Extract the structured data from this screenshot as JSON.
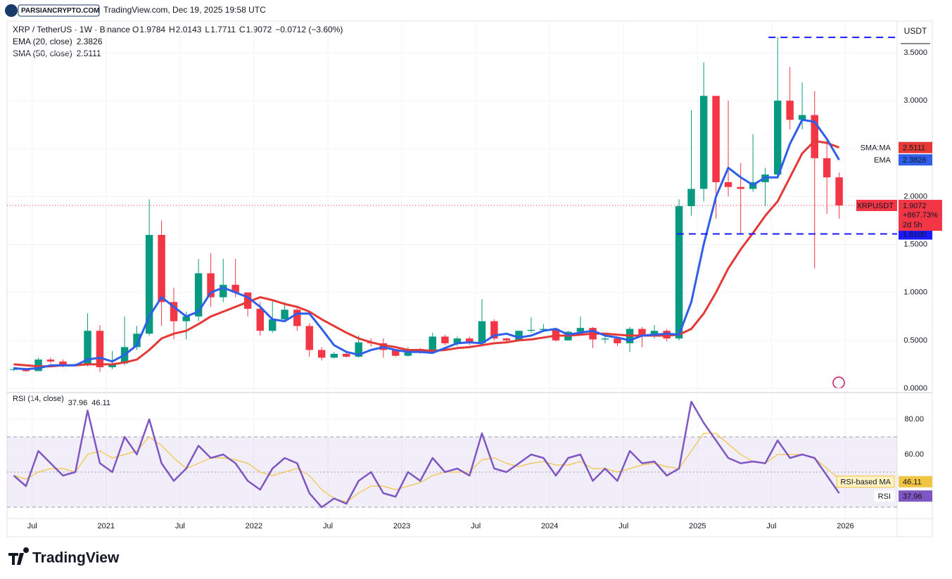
{
  "header": {
    "watermark": "PARSIANCRYPTO.COM",
    "stamp": "TradingView.com, Dec 19, 2025 19:58 UTC",
    "logo": "TradingView"
  },
  "chart_data": {
    "type": "candlestick",
    "title": "XRP / TetherUS · 1W · Binance",
    "ohlc": [
      {
        "key": "O",
        "value": 1.9784
      },
      {
        "key": "H",
        "value": 2.0143
      },
      {
        "key": "L",
        "value": 1.7711
      },
      {
        "key": "C",
        "value": 1.9072
      }
    ],
    "change": {
      "value": -0.0712,
      "label": "−0.0712 (−3.60%)"
    },
    "up_color": "#089981",
    "down_color": "#f23645",
    "x": [
      2020.375,
      2020.458,
      2020.542,
      2020.625,
      2020.708,
      2020.792,
      2020.875,
      2020.958,
      2021.042,
      2021.125,
      2021.208,
      2021.292,
      2021.375,
      2021.458,
      2021.542,
      2021.625,
      2021.708,
      2021.792,
      2021.875,
      2021.958,
      2022.042,
      2022.125,
      2022.208,
      2022.292,
      2022.375,
      2022.458,
      2022.542,
      2022.625,
      2022.708,
      2022.792,
      2022.875,
      2022.958,
      2023.042,
      2023.125,
      2023.208,
      2023.292,
      2023.375,
      2023.458,
      2023.542,
      2023.625,
      2023.708,
      2023.792,
      2023.875,
      2023.958,
      2024.042,
      2024.125,
      2024.208,
      2024.292,
      2024.375,
      2024.458,
      2024.542,
      2024.625,
      2024.708,
      2024.792,
      2024.875,
      2024.958,
      2025.042,
      2025.125,
      2025.208,
      2025.292,
      2025.375,
      2025.458,
      2025.542,
      2025.625,
      2025.708,
      2025.792,
      2025.875,
      2025.958
    ],
    "open": [
      0.2,
      0.2,
      0.18,
      0.3,
      0.28,
      0.24,
      0.25,
      0.6,
      0.22,
      0.26,
      0.43,
      0.57,
      1.6,
      0.9,
      0.7,
      0.75,
      1.2,
      0.95,
      1.08,
      1.0,
      0.83,
      0.6,
      0.72,
      0.82,
      0.65,
      0.4,
      0.32,
      0.36,
      0.33,
      0.48,
      0.47,
      0.4,
      0.34,
      0.41,
      0.38,
      0.54,
      0.47,
      0.52,
      0.47,
      0.7,
      0.52,
      0.5,
      0.6,
      0.61,
      0.62,
      0.5,
      0.59,
      0.63,
      0.51,
      0.52,
      0.47,
      0.62,
      0.56,
      0.6,
      0.52,
      1.9,
      2.08,
      3.05,
      2.15,
      2.1,
      2.08,
      2.15,
      2.23,
      3.0,
      2.8,
      2.85,
      2.4,
      2.2
    ],
    "high": [
      0.22,
      0.21,
      0.32,
      0.32,
      0.3,
      0.26,
      0.78,
      0.66,
      0.39,
      0.75,
      0.65,
      1.97,
      1.75,
      1.05,
      0.8,
      1.35,
      1.41,
      1.35,
      1.35,
      1.0,
      0.9,
      0.92,
      0.9,
      0.85,
      0.68,
      0.43,
      0.38,
      0.38,
      0.55,
      0.52,
      0.52,
      0.41,
      0.43,
      0.42,
      0.58,
      0.56,
      0.54,
      0.54,
      0.93,
      0.72,
      0.53,
      0.6,
      0.74,
      0.67,
      0.63,
      0.6,
      0.75,
      0.64,
      0.55,
      0.53,
      0.64,
      0.64,
      0.66,
      0.62,
      1.97,
      2.9,
      3.4,
      3.05,
      3.0,
      2.35,
      2.65,
      2.3,
      3.66,
      3.35,
      3.19,
      3.1,
      2.6,
      2.25
    ],
    "low": [
      0.18,
      0.17,
      0.18,
      0.26,
      0.22,
      0.23,
      0.23,
      0.17,
      0.2,
      0.24,
      0.4,
      0.55,
      0.65,
      0.51,
      0.51,
      0.7,
      0.85,
      0.9,
      0.95,
      0.75,
      0.55,
      0.58,
      0.7,
      0.6,
      0.33,
      0.29,
      0.31,
      0.32,
      0.32,
      0.44,
      0.32,
      0.33,
      0.33,
      0.36,
      0.36,
      0.45,
      0.44,
      0.45,
      0.47,
      0.5,
      0.48,
      0.49,
      0.58,
      0.59,
      0.49,
      0.5,
      0.55,
      0.42,
      0.47,
      0.44,
      0.38,
      0.43,
      0.52,
      0.49,
      0.5,
      1.8,
      1.95,
      1.77,
      2.0,
      1.61,
      2.05,
      1.9,
      2.2,
      2.7,
      2.7,
      1.25,
      1.82,
      1.77
    ],
    "close": [
      0.2,
      0.18,
      0.3,
      0.28,
      0.24,
      0.25,
      0.6,
      0.22,
      0.26,
      0.43,
      0.57,
      1.6,
      0.9,
      0.7,
      0.75,
      1.2,
      0.95,
      1.08,
      1.0,
      0.83,
      0.6,
      0.72,
      0.82,
      0.65,
      0.4,
      0.32,
      0.36,
      0.33,
      0.48,
      0.47,
      0.4,
      0.34,
      0.41,
      0.38,
      0.54,
      0.47,
      0.52,
      0.47,
      0.7,
      0.52,
      0.5,
      0.6,
      0.61,
      0.62,
      0.5,
      0.59,
      0.63,
      0.51,
      0.52,
      0.47,
      0.62,
      0.56,
      0.6,
      0.52,
      1.9,
      2.08,
      3.05,
      2.15,
      2.1,
      2.08,
      2.15,
      2.23,
      3.0,
      2.8,
      2.85,
      2.4,
      2.2,
      1.9072
    ],
    "indicators": [
      {
        "name": "SMA (50, close)",
        "tag": "SMA:MA",
        "color": "#e53935",
        "last": 2.5111,
        "values": [
          0.25,
          0.24,
          0.23,
          0.23,
          0.24,
          0.24,
          0.25,
          0.25,
          0.25,
          0.27,
          0.3,
          0.4,
          0.52,
          0.57,
          0.6,
          0.67,
          0.75,
          0.8,
          0.85,
          0.9,
          0.95,
          0.92,
          0.88,
          0.85,
          0.8,
          0.72,
          0.65,
          0.58,
          0.52,
          0.48,
          0.45,
          0.43,
          0.4,
          0.4,
          0.39,
          0.4,
          0.42,
          0.43,
          0.45,
          0.47,
          0.48,
          0.5,
          0.51,
          0.53,
          0.55,
          0.55,
          0.56,
          0.57,
          0.57,
          0.56,
          0.55,
          0.55,
          0.55,
          0.55,
          0.56,
          0.62,
          0.78,
          1.0,
          1.25,
          1.45,
          1.62,
          1.8,
          1.95,
          2.2,
          2.45,
          2.58,
          2.56,
          2.5111
        ]
      },
      {
        "name": "EMA (20, close)",
        "tag": "EMA",
        "color": "#2f5fe8",
        "last": 2.3826,
        "values": [
          0.21,
          0.2,
          0.21,
          0.24,
          0.24,
          0.24,
          0.3,
          0.32,
          0.28,
          0.35,
          0.45,
          0.75,
          0.95,
          0.85,
          0.75,
          0.8,
          1.0,
          1.05,
          1.0,
          0.95,
          0.85,
          0.72,
          0.7,
          0.78,
          0.78,
          0.62,
          0.45,
          0.38,
          0.35,
          0.4,
          0.43,
          0.4,
          0.38,
          0.38,
          0.37,
          0.42,
          0.47,
          0.48,
          0.47,
          0.55,
          0.57,
          0.53,
          0.55,
          0.6,
          0.62,
          0.56,
          0.58,
          0.6,
          0.55,
          0.53,
          0.5,
          0.55,
          0.56,
          0.57,
          0.56,
          0.9,
          1.5,
          2.0,
          2.3,
          2.2,
          2.12,
          2.2,
          2.2,
          2.55,
          2.8,
          2.78,
          2.6,
          2.3826
        ]
      }
    ],
    "price_tag": {
      "symbol": "XRPUSDT",
      "value": 1.9072,
      "change": {
        "value": 867.73,
        "label": "+867.73%"
      },
      "countdown": "2d 5h"
    },
    "levels": [
      3.66,
      {
        "value": 1.61,
        "label": "1.6100"
      }
    ],
    "currency": "USDT",
    "xlim": [
      2020.33,
      2026.35
    ],
    "xticks": [
      {
        "value": 2020.5,
        "label": "Jul"
      },
      {
        "value": 2021,
        "label": "2021"
      },
      {
        "value": 2021.5,
        "label": "Jul"
      },
      {
        "value": 2022,
        "label": "2022"
      },
      {
        "value": 2022.5,
        "label": "Jul"
      },
      {
        "value": 2023,
        "label": "2023"
      },
      {
        "value": 2023.5,
        "label": "Jul"
      },
      {
        "value": 2024,
        "label": "2024"
      },
      {
        "value": 2024.5,
        "label": "Jul"
      },
      {
        "value": 2025,
        "label": "2025"
      },
      {
        "value": 2025.5,
        "label": "Jul"
      },
      {
        "value": 2026,
        "label": "2026"
      }
    ],
    "ylim": [
      -0.022,
      3.793
    ],
    "yticks": [
      {
        "value": 0,
        "label": "0.0000"
      },
      {
        "value": 0.5,
        "label": "0.5000"
      },
      {
        "value": 1,
        "label": "1.0000"
      },
      {
        "value": 1.5,
        "label": "1.5000"
      },
      {
        "value": 2,
        "label": "2.0000"
      },
      {
        "value": 2.5,
        "label": "2.5000"
      },
      {
        "value": 3,
        "label": "3.0000"
      },
      {
        "value": 3.5,
        "label": "3.5000"
      }
    ],
    "grid": true,
    "rsi": {
      "title": "RSI (14, close)",
      "color": "#7e57c2",
      "ma_color": "#f2c443",
      "tag": "RSI",
      "ma_tag": "RSI-based MA",
      "last": 37.96,
      "ma_last": 46.11,
      "values": [
        48,
        42,
        62,
        55,
        48,
        50,
        85,
        55,
        50,
        70,
        60,
        80,
        55,
        45,
        52,
        65,
        58,
        60,
        55,
        45,
        40,
        52,
        58,
        55,
        38,
        30,
        35,
        32,
        45,
        50,
        38,
        36,
        50,
        45,
        58,
        50,
        52,
        48,
        72,
        52,
        50,
        55,
        60,
        58,
        48,
        58,
        60,
        45,
        52,
        45,
        62,
        55,
        56,
        48,
        52,
        90,
        78,
        68,
        58,
        55,
        56,
        55,
        68,
        58,
        60,
        58,
        48,
        37.96
      ],
      "ma_values": [
        48,
        46,
        50,
        52,
        52,
        50,
        60,
        62,
        58,
        60,
        62,
        70,
        65,
        58,
        52,
        55,
        58,
        58,
        57,
        55,
        50,
        48,
        50,
        52,
        48,
        40,
        35,
        33,
        38,
        42,
        42,
        40,
        42,
        44,
        48,
        50,
        50,
        50,
        57,
        58,
        55,
        53,
        55,
        56,
        54,
        54,
        56,
        52,
        52,
        50,
        52,
        54,
        55,
        53,
        52,
        62,
        72,
        72,
        66,
        60,
        56,
        55,
        60,
        60,
        60,
        58,
        52,
        46.11
      ],
      "ylim": [
        23.6,
        93.6
      ],
      "yticks": [
        {
          "value": 80,
          "label": "80.00"
        },
        {
          "value": 60,
          "label": "60.00"
        }
      ],
      "bands": [
        70,
        50,
        30
      ]
    }
  }
}
